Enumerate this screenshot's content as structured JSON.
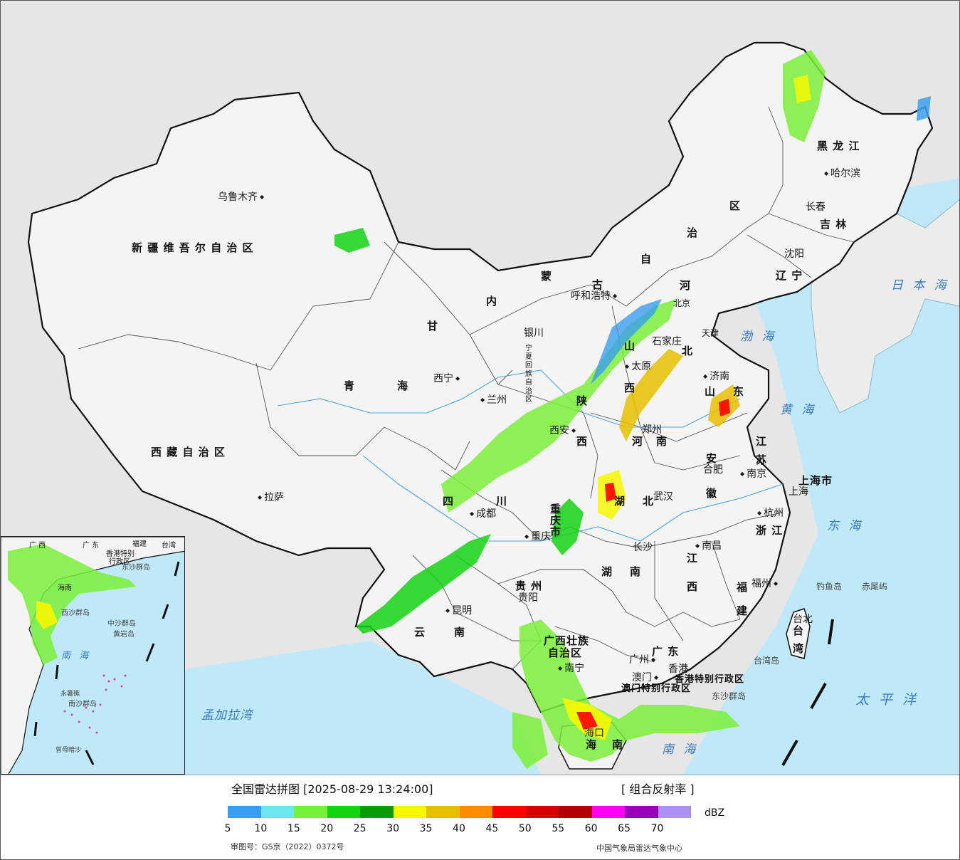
{
  "legend": {
    "title": "全国雷达拼图 [2025-08-29 13:24:00]",
    "product": "[ 组合反射率 ]",
    "unit": "dBZ",
    "ticks": [
      "5",
      "10",
      "15",
      "20",
      "25",
      "30",
      "35",
      "40",
      "45",
      "50",
      "55",
      "60",
      "65",
      "70"
    ],
    "colors": [
      "#3b9df0",
      "#6de6f0",
      "#7af03a",
      "#14d214",
      "#0c9a0c",
      "#f7f700",
      "#e6c000",
      "#ff8c00",
      "#ff0000",
      "#d80000",
      "#b40000",
      "#ff00f0",
      "#9600b4",
      "#ae91ee"
    ],
    "review_no": "审图号：GS京（2022）0372号",
    "org": "中国气象局雷达气象中心"
  },
  "colors": {
    "sea": "#bfe9f8",
    "land": "#f4f4f4",
    "outside": "#e6e6e6",
    "border": "#111111"
  },
  "provinces": {
    "xinjiang": "新 疆 维 吾 尔 自 治 区",
    "xizang": "西 藏 自 治 区",
    "qinghai_a": "青",
    "qinghai_b": "海",
    "gansu": "甘",
    "neimenggu_1": "内",
    "neimenggu_2": "蒙",
    "neimenggu_3": "古",
    "neimenggu_4": "自",
    "neimenggu_5": "治",
    "neimenggu_6": "区",
    "heilongjiang": "黑 龙 江",
    "jilin": "吉 林",
    "liaoning": "辽 宁",
    "hebei_1": "河",
    "hebei_2": "北",
    "shanxi_1": "山",
    "shanxi_2": "西",
    "shaanxi_1": "陕",
    "shaanxi_2": "西",
    "henan_1": "河",
    "henan_2": "南",
    "shandong_1": "山",
    "shandong_2": "东",
    "jiangsu_1": "江",
    "jiangsu_2": "苏",
    "anhui_1": "安",
    "anhui_2": "徽",
    "hubei_1": "湖",
    "hubei_2": "北",
    "sichuan_1": "四",
    "sichuan_2": "川",
    "chongqing": "重 庆 市",
    "guizhou": "贵 州",
    "yunnan_1": "云",
    "yunnan_2": "南",
    "hunan_1": "湖",
    "hunan_2": "南",
    "jiangxi_1": "江",
    "jiangxi_2": "西",
    "zhejiang": "浙 江",
    "fujian_1": "福",
    "fujian_2": "建",
    "guangdong": "广 东",
    "guangxi_1": "广西壮族",
    "guangxi_2": "自治区",
    "hainan_1": "海",
    "hainan_2": "南",
    "taiwan_1": "台",
    "taiwan_2": "湾",
    "shanghai": "上海市",
    "tianjin": "天津",
    "ningxia": "宁夏回族自治区",
    "hk": "香港特别行政区",
    "macau": "澳门特别行政区"
  },
  "cities": {
    "urumqi": "乌鲁木齐",
    "lhasa": "拉萨",
    "xining": "西宁",
    "lanzhou": "兰州",
    "yinchuan": "银川",
    "hohhot": "呼和浩特",
    "beijing": "北京",
    "tianjin": "天津",
    "shijiazhuang": "石家庄",
    "taiyuan": "太原",
    "jinan": "济南",
    "zhengzhou": "郑州",
    "xian": "西安",
    "chengdu": "成都",
    "chongqing": "重庆",
    "wuhan": "武汉",
    "hefei": "合肥",
    "nanjing": "南京",
    "shanghai": "上海",
    "hangzhou": "杭州",
    "nanchang": "南昌",
    "changsha": "长沙",
    "guiyang": "贵阳",
    "kunming": "昆明",
    "nanning": "南宁",
    "guangzhou": "广州",
    "hongkong": "香港",
    "macau": "澳门",
    "fuzhou": "福州",
    "taipei": "台北",
    "haikou": "海口",
    "shenyang": "沈阳",
    "changchun": "长春",
    "harbin": "哈尔滨"
  },
  "seas": {
    "japan_sea": "日 本 海",
    "bohai": "渤 海",
    "yellow_sea": "黄 海",
    "east_sea": "东 海",
    "pacific": "太 平 洋",
    "south_sea": "南 海",
    "bengal": "孟加拉湾",
    "inset_south_sea": "南 海"
  },
  "islands": {
    "diaoyu": "钓鱼岛",
    "chiwei": "赤尾屿",
    "taiwan_island": "台湾岛",
    "dongsha": "东沙群岛",
    "inset_dongsha": "东沙群岛",
    "inset_zhongsha": "中沙群岛",
    "inset_huangyan": "黄岩岛",
    "inset_xisha": "西沙群岛",
    "inset_yongshu": "永暑礁",
    "inset_nansha": "南沙群岛",
    "inset_zengmu": "曾母暗沙"
  },
  "inset": {
    "guangxi": "广 西",
    "guangdong": "广 东",
    "fujian": "福建",
    "taiwan": "台湾",
    "hk": "香港特别",
    "hk2": "行政区",
    "hainan": "海南"
  }
}
